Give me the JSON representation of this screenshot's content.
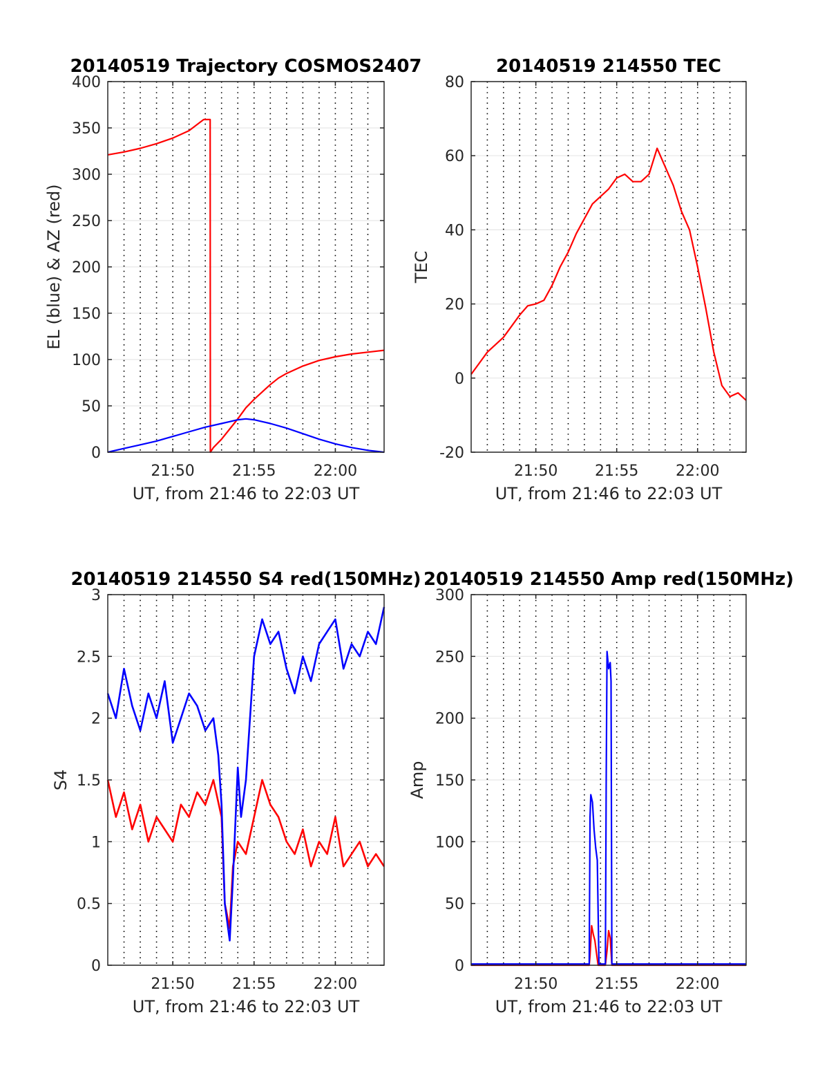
{
  "colors": {
    "red": "#ff0000",
    "blue": "#0000ff",
    "axis": "#262626",
    "grid_h": "#e6e6e6",
    "grid_v": "#000000"
  },
  "chart_data": [
    {
      "id": "trajectory",
      "type": "line",
      "title": "20140519 Trajectory COSMOS2407",
      "xlabel": "UT, from 21:46 to 22:03 UT",
      "ylabel": "EL (blue) & AZ (red)",
      "xlim": [
        0,
        17
      ],
      "ylim": [
        0,
        400
      ],
      "yticks": [
        "0",
        "50",
        "100",
        "150",
        "200",
        "250",
        "300",
        "350",
        "400"
      ],
      "xticks": [
        {
          "x": 4,
          "label": "21:50"
        },
        {
          "x": 9,
          "label": "21:55"
        },
        {
          "x": 14,
          "label": "22:00"
        }
      ],
      "grid": true,
      "series": [
        {
          "key": "az",
          "color": "red",
          "x": [
            0,
            1,
            2,
            3,
            4,
            5,
            5.9,
            6.3,
            6.31,
            6.5,
            7,
            7.5,
            8,
            8.5,
            9,
            9.5,
            10,
            10.5,
            11,
            12,
            13,
            14,
            15,
            16,
            17
          ],
          "y": [
            321,
            324,
            328,
            333,
            339,
            347,
            359,
            359,
            0,
            5,
            14,
            25,
            36,
            48,
            57,
            65,
            73,
            80,
            85,
            93,
            99,
            103,
            106,
            108,
            110
          ]
        },
        {
          "key": "el",
          "color": "blue",
          "x": [
            0,
            1,
            2,
            3,
            4,
            5,
            6,
            7,
            7.5,
            8,
            8.5,
            9,
            10,
            11,
            12,
            13,
            14,
            15,
            16,
            17
          ],
          "y": [
            0,
            4,
            8,
            12,
            17,
            22,
            27,
            31,
            33,
            35,
            36,
            35,
            31,
            26,
            20,
            14,
            9,
            5,
            2,
            0
          ]
        }
      ]
    },
    {
      "id": "tec",
      "type": "line",
      "title": "20140519 214550 TEC",
      "xlabel": "UT, from 21:46 to 22:03 UT",
      "ylabel": "TEC",
      "xlim": [
        0,
        17
      ],
      "ylim": [
        -20,
        80
      ],
      "yticks": [
        "-20",
        "0",
        "20",
        "40",
        "60",
        "80"
      ],
      "xticks": [
        {
          "x": 4,
          "label": "21:50"
        },
        {
          "x": 9,
          "label": "21:55"
        },
        {
          "x": 14,
          "label": "22:00"
        }
      ],
      "grid": true,
      "series": [
        {
          "key": "tec",
          "color": "red",
          "x": [
            0,
            0.5,
            1,
            1.5,
            2,
            2.5,
            3,
            3.5,
            4,
            4.5,
            5,
            5.5,
            6,
            6.5,
            7,
            7.5,
            8,
            8.5,
            9,
            9.5,
            10,
            10.5,
            11,
            11.5,
            12,
            12.5,
            13,
            13.5,
            14,
            14.5,
            15,
            15.5,
            16,
            16.5,
            17
          ],
          "y": [
            1,
            4,
            7,
            9,
            11,
            14,
            17,
            19.5,
            20,
            21,
            25,
            30,
            34,
            39,
            43,
            47,
            49,
            51,
            54,
            55,
            53,
            53,
            55,
            62,
            57,
            52,
            45,
            40,
            30,
            19,
            7,
            -2,
            -5,
            -4,
            -6
          ]
        }
      ]
    },
    {
      "id": "s4",
      "type": "line",
      "title": "20140519 214550 S4 red(150MHz)",
      "xlabel": "UT, from 21:46 to 22:03 UT",
      "ylabel": "S4",
      "xlim": [
        0,
        17
      ],
      "ylim": [
        0,
        3
      ],
      "yticks": [
        "0",
        "0.5",
        "1",
        "1.5",
        "2",
        "2.5",
        "3"
      ],
      "xticks": [
        {
          "x": 4,
          "label": "21:50"
        },
        {
          "x": 9,
          "label": "21:55"
        },
        {
          "x": 14,
          "label": "22:00"
        }
      ],
      "grid": true,
      "series": [
        {
          "key": "s4_red",
          "color": "red",
          "x": [
            0,
            0.5,
            1,
            1.5,
            2,
            2.5,
            3,
            3.5,
            4,
            4.5,
            5,
            5.5,
            6,
            6.5,
            7,
            7.2,
            7.5,
            7.7,
            8,
            8.5,
            9,
            9.5,
            10,
            10.5,
            11,
            11.5,
            12,
            12.5,
            13,
            13.5,
            14,
            14.5,
            15,
            15.5,
            16,
            16.5,
            17
          ],
          "y": [
            1.5,
            1.2,
            1.4,
            1.1,
            1.3,
            1.0,
            1.2,
            1.1,
            1.0,
            1.3,
            1.2,
            1.4,
            1.3,
            1.5,
            1.2,
            0.5,
            0.3,
            0.8,
            1.0,
            0.9,
            1.2,
            1.5,
            1.3,
            1.2,
            1.0,
            0.9,
            1.1,
            0.8,
            1.0,
            0.9,
            1.2,
            0.8,
            0.9,
            1.0,
            0.8,
            0.9,
            0.8
          ]
        },
        {
          "key": "s4_blue",
          "color": "blue",
          "x": [
            0,
            0.5,
            1,
            1.5,
            2,
            2.5,
            3,
            3.5,
            4,
            4.5,
            5,
            5.5,
            6,
            6.5,
            6.8,
            7,
            7.2,
            7.5,
            7.7,
            8,
            8.2,
            8.5,
            9,
            9.5,
            10,
            10.5,
            11,
            11.5,
            12,
            12.5,
            13,
            13.5,
            14,
            14.5,
            15,
            15.5,
            16,
            16.5,
            17
          ],
          "y": [
            2.2,
            2.0,
            2.4,
            2.1,
            1.9,
            2.2,
            2.0,
            2.3,
            1.8,
            2.0,
            2.2,
            2.1,
            1.9,
            2.0,
            1.7,
            1.3,
            0.5,
            0.2,
            0.7,
            1.6,
            1.2,
            1.5,
            2.5,
            2.8,
            2.6,
            2.7,
            2.4,
            2.2,
            2.5,
            2.3,
            2.6,
            2.7,
            2.8,
            2.4,
            2.6,
            2.5,
            2.7,
            2.6,
            2.9
          ]
        }
      ]
    },
    {
      "id": "amp",
      "type": "line",
      "title": "20140519 214550 Amp red(150MHz)",
      "xlabel": "UT, from 21:46 to 22:03 UT",
      "ylabel": "Amp",
      "xlim": [
        0,
        17
      ],
      "ylim": [
        0,
        300
      ],
      "yticks": [
        "0",
        "50",
        "100",
        "150",
        "200",
        "250",
        "300"
      ],
      "xticks": [
        {
          "x": 4,
          "label": "21:50"
        },
        {
          "x": 9,
          "label": "21:55"
        },
        {
          "x": 14,
          "label": "22:00"
        }
      ],
      "grid": true,
      "series": [
        {
          "key": "amp_red",
          "color": "red",
          "x": [
            0,
            7.3,
            7.35,
            7.45,
            7.55,
            7.65,
            7.75,
            7.85,
            8.3,
            8.4,
            8.5,
            8.6,
            8.7,
            17
          ],
          "y": [
            0,
            0,
            8,
            32,
            25,
            20,
            10,
            0,
            0,
            12,
            28,
            22,
            0,
            0
          ]
        },
        {
          "key": "amp_blue",
          "color": "blue",
          "x": [
            0,
            7.3,
            7.35,
            7.4,
            7.5,
            7.6,
            7.7,
            7.8,
            7.9,
            8.3,
            8.35,
            8.4,
            8.5,
            8.6,
            8.65,
            8.7,
            17
          ],
          "y": [
            1,
            1,
            120,
            138,
            132,
            110,
            95,
            85,
            1,
            1,
            150,
            254,
            240,
            245,
            230,
            1,
            1
          ]
        }
      ]
    }
  ]
}
